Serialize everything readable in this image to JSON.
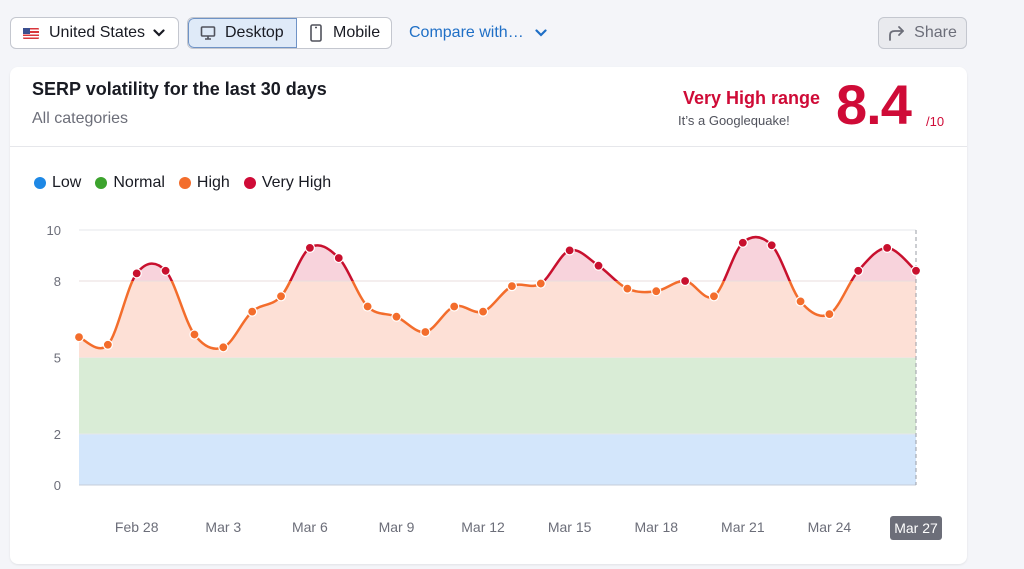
{
  "toolbar": {
    "country": "United States",
    "devices": [
      {
        "label": "Desktop",
        "icon": "desktop-icon",
        "active": true
      },
      {
        "label": "Mobile",
        "icon": "mobile-icon",
        "active": false
      }
    ],
    "compare_label": "Compare with…",
    "share_label": "Share"
  },
  "card": {
    "title": "SERP volatility for the last 30 days",
    "subtitle": "All categories",
    "range_label": "Very High range",
    "range_sub": "It’s a Googlequake!",
    "score": "8.4",
    "score_max": "/10"
  },
  "legend": [
    {
      "label": "Low",
      "color": "#1e88e5"
    },
    {
      "label": "Normal",
      "color": "#3ca32d"
    },
    {
      "label": "High",
      "color": "#f36d2c"
    },
    {
      "label": "Very High",
      "color": "#cf0b37"
    }
  ],
  "colors": {
    "low_band": "#d3e6fb",
    "normal_band": "#d9ecd6",
    "high_band": "#fde0d6",
    "very_high_band": "#f8d3dc",
    "high_line": "#f36d2c",
    "very_high_line": "#c8102e"
  },
  "selected_x_label": "Mar 27",
  "chart_data": {
    "type": "area",
    "title": "SERP volatility for the last 30 days",
    "subtitle": "All categories",
    "xlabel": "",
    "ylabel": "",
    "ylim": [
      0,
      10
    ],
    "yticks": [
      0,
      2,
      5,
      8,
      10
    ],
    "grid": true,
    "legend_position": "top-left",
    "bands": [
      {
        "name": "Low",
        "from": 0,
        "to": 2
      },
      {
        "name": "Normal",
        "from": 2,
        "to": 5
      },
      {
        "name": "High",
        "from": 5,
        "to": 8
      },
      {
        "name": "Very High",
        "from": 8,
        "to": 10
      }
    ],
    "x": [
      "Feb 26",
      "Feb 27",
      "Feb 28",
      "Mar 1",
      "Mar 2",
      "Mar 3",
      "Mar 4",
      "Mar 5",
      "Mar 6",
      "Mar 7",
      "Mar 8",
      "Mar 9",
      "Mar 10",
      "Mar 11",
      "Mar 12",
      "Mar 13",
      "Mar 14",
      "Mar 15",
      "Mar 16",
      "Mar 17",
      "Mar 18",
      "Mar 19",
      "Mar 20",
      "Mar 21",
      "Mar 22",
      "Mar 23",
      "Mar 24",
      "Mar 25",
      "Mar 26",
      "Mar 27"
    ],
    "xtick_labels": [
      "Feb 28",
      "Mar 3",
      "Mar 6",
      "Mar 9",
      "Mar 12",
      "Mar 15",
      "Mar 18",
      "Mar 21",
      "Mar 24",
      "Mar 27"
    ],
    "series": [
      {
        "name": "Volatility score",
        "values": [
          5.8,
          5.5,
          8.3,
          8.4,
          5.9,
          5.4,
          6.8,
          7.4,
          9.3,
          8.9,
          7.0,
          6.6,
          6.0,
          7.0,
          6.8,
          7.8,
          7.9,
          9.2,
          8.6,
          7.7,
          7.6,
          8.0,
          7.4,
          9.5,
          9.4,
          7.2,
          6.7,
          8.4,
          9.3,
          8.4
        ]
      }
    ]
  }
}
